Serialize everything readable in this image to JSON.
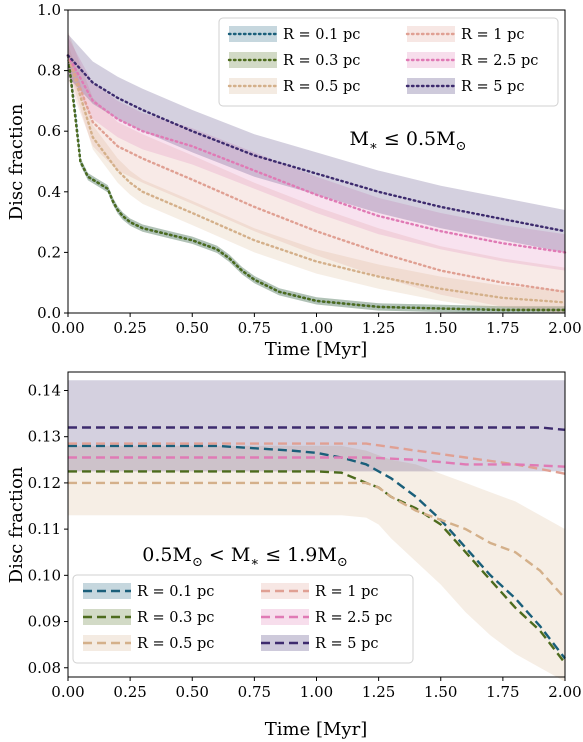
{
  "chart_data": [
    {
      "type": "line",
      "xlabel": "Time [Myr]",
      "ylabel": "Disc fraction",
      "annotation": "M* ≤ 0.5M⊙",
      "xlim": [
        0,
        2
      ],
      "ylim": [
        0,
        1
      ],
      "xticks": [
        "0.00",
        "0.25",
        "0.50",
        "0.75",
        "1.00",
        "1.25",
        "1.50",
        "1.75",
        "2.00"
      ],
      "yticks": [
        "0.0",
        "0.2",
        "0.4",
        "0.6",
        "0.8",
        "1.0"
      ],
      "line_style": "dotted",
      "legend_position": "upper-right",
      "series": [
        {
          "name": "R = 0.1 pc",
          "color": "#1a5f7a",
          "x": [
            0,
            0.03,
            0.05,
            0.08,
            0.12,
            0.16,
            0.18,
            0.2,
            0.22,
            0.25,
            0.3,
            0.4,
            0.5,
            0.6,
            0.65,
            0.7,
            0.75,
            0.85,
            1.0,
            1.25,
            1.5,
            1.75,
            2.0
          ],
          "y": [
            0.85,
            0.65,
            0.5,
            0.45,
            0.43,
            0.41,
            0.37,
            0.34,
            0.32,
            0.3,
            0.28,
            0.26,
            0.24,
            0.21,
            0.18,
            0.14,
            0.11,
            0.07,
            0.04,
            0.02,
            0.015,
            0.01,
            0.01
          ],
          "band": 0.012
        },
        {
          "name": "R = 0.3 pc",
          "color": "#4d6b1d",
          "x": [
            0,
            0.03,
            0.05,
            0.08,
            0.12,
            0.16,
            0.18,
            0.2,
            0.22,
            0.25,
            0.3,
            0.4,
            0.5,
            0.6,
            0.65,
            0.7,
            0.75,
            0.85,
            1.0,
            1.25,
            1.5,
            1.75,
            2.0
          ],
          "y": [
            0.85,
            0.64,
            0.5,
            0.45,
            0.43,
            0.41,
            0.37,
            0.34,
            0.32,
            0.3,
            0.28,
            0.26,
            0.24,
            0.21,
            0.18,
            0.14,
            0.11,
            0.07,
            0.04,
            0.02,
            0.015,
            0.01,
            0.01
          ],
          "band": 0.012
        },
        {
          "name": "R = 0.5 pc",
          "color": "#d4b08a",
          "x": [
            0,
            0.1,
            0.2,
            0.25,
            0.3,
            0.5,
            0.75,
            1.0,
            1.25,
            1.5,
            1.75,
            2.0
          ],
          "y": [
            0.85,
            0.58,
            0.47,
            0.43,
            0.4,
            0.33,
            0.24,
            0.17,
            0.12,
            0.08,
            0.05,
            0.035
          ],
          "band": 0.04
        },
        {
          "name": "R = 1 pc",
          "color": "#e0a093",
          "x": [
            0,
            0.1,
            0.2,
            0.3,
            0.5,
            0.75,
            1.0,
            1.25,
            1.5,
            1.75,
            2.0
          ],
          "y": [
            0.85,
            0.63,
            0.55,
            0.51,
            0.44,
            0.35,
            0.27,
            0.2,
            0.14,
            0.1,
            0.07
          ],
          "band": 0.08
        },
        {
          "name": "R = 2.5 pc",
          "color": "#e07ab5",
          "x": [
            0,
            0.1,
            0.2,
            0.3,
            0.5,
            0.75,
            1.0,
            1.25,
            1.5,
            1.75,
            2.0
          ],
          "y": [
            0.85,
            0.7,
            0.64,
            0.6,
            0.55,
            0.47,
            0.39,
            0.32,
            0.27,
            0.23,
            0.2
          ],
          "band": 0.06
        },
        {
          "name": "R = 5 pc",
          "color": "#3d2b6e",
          "x": [
            0,
            0.1,
            0.2,
            0.3,
            0.5,
            0.75,
            1.0,
            1.25,
            1.5,
            1.75,
            2.0
          ],
          "y": [
            0.85,
            0.76,
            0.71,
            0.67,
            0.6,
            0.52,
            0.46,
            0.4,
            0.35,
            0.31,
            0.27
          ],
          "band": 0.07
        }
      ]
    },
    {
      "type": "line",
      "xlabel": "Time [Myr]",
      "ylabel": "Disc fraction",
      "annotation": "0.5M⊙ < M* ≤ 1.9M⊙",
      "xlim": [
        0,
        2
      ],
      "ylim": [
        0.078,
        0.144
      ],
      "xticks": [
        "0.00",
        "0.25",
        "0.50",
        "0.75",
        "1.00",
        "1.25",
        "1.50",
        "1.75",
        "2.00"
      ],
      "yticks": [
        "0.08",
        "0.09",
        "0.10",
        "0.11",
        "0.12",
        "0.13",
        "0.14"
      ],
      "line_style": "dashed",
      "legend_position": "lower-left",
      "series": [
        {
          "name": "R = 0.1 pc",
          "color": "#1a5f7a",
          "x": [
            0,
            0.6,
            0.9,
            1.0,
            1.05,
            1.1,
            1.2,
            1.3,
            1.4,
            1.5,
            1.6,
            1.7,
            1.8,
            1.9,
            2.0
          ],
          "y": [
            0.128,
            0.128,
            0.127,
            0.1265,
            0.126,
            0.1255,
            0.124,
            0.121,
            0.117,
            0.112,
            0.106,
            0.1,
            0.095,
            0.089,
            0.082
          ],
          "band": 0
        },
        {
          "name": "R = 0.3 pc",
          "color": "#4d6b1d",
          "x": [
            0,
            0.9,
            1.0,
            1.1,
            1.2,
            1.25,
            1.3,
            1.4,
            1.5,
            1.6,
            1.7,
            1.8,
            1.9,
            2.0
          ],
          "y": [
            0.1225,
            0.1225,
            0.1225,
            0.1222,
            0.12,
            0.119,
            0.117,
            0.1145,
            0.111,
            0.105,
            0.099,
            0.093,
            0.088,
            0.081
          ],
          "band": 0
        },
        {
          "name": "R = 0.5 pc",
          "color": "#d4b08a",
          "x": [
            0,
            0.9,
            1.0,
            1.1,
            1.2,
            1.25,
            1.3,
            1.4,
            1.5,
            1.6,
            1.7,
            1.8,
            1.9,
            2.0
          ],
          "y": [
            0.12,
            0.12,
            0.12,
            0.12,
            0.12,
            0.119,
            0.117,
            0.114,
            0.112,
            0.11,
            0.107,
            0.105,
            0.101,
            0.095
          ],
          "band_lower": [
            0.113,
            0.113,
            0.113,
            0.113,
            0.1125,
            0.111,
            0.108,
            0.103,
            0.098,
            0.092,
            0.087,
            0.083,
            0.08,
            0.077
          ],
          "band_upper": [
            0.128,
            0.128,
            0.128,
            0.128,
            0.127,
            0.126,
            0.125,
            0.124,
            0.122,
            0.12,
            0.118,
            0.116,
            0.113,
            0.11
          ]
        },
        {
          "name": "R = 1 pc",
          "color": "#e0a093",
          "x": [
            0,
            1.0,
            1.2,
            1.4,
            1.6,
            1.8,
            1.9,
            2.0
          ],
          "y": [
            0.1285,
            0.1285,
            0.1285,
            0.127,
            0.1255,
            0.124,
            0.123,
            0.122
          ],
          "band": 0
        },
        {
          "name": "R = 2.5 pc",
          "color": "#e07ab5",
          "x": [
            0,
            1.2,
            1.4,
            1.6,
            1.8,
            2.0
          ],
          "y": [
            0.1255,
            0.1255,
            0.125,
            0.124,
            0.124,
            0.1235
          ],
          "band": 0
        },
        {
          "name": "R = 5 pc",
          "color": "#3d2b6e",
          "x": [
            0,
            1.0,
            1.5,
            1.9,
            2.0
          ],
          "y": [
            0.132,
            0.132,
            0.132,
            0.132,
            0.1315
          ],
          "band_lower_const": 0.1225,
          "band_upper_const": 0.1422
        }
      ]
    }
  ]
}
